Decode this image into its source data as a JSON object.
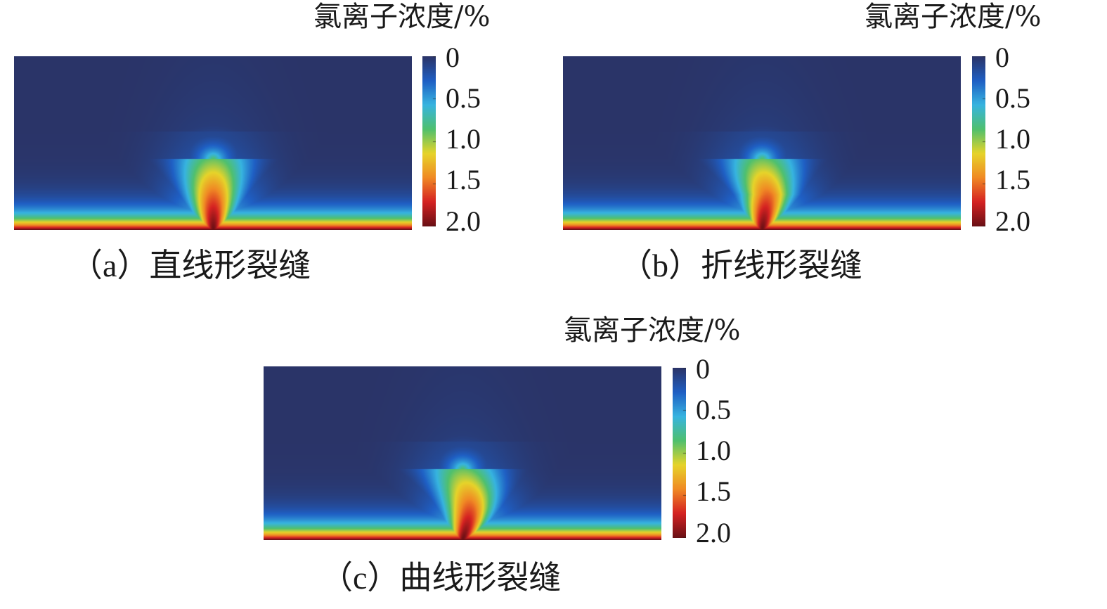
{
  "chart_data": [
    {
      "type": "heatmap",
      "caption_label": "（a）",
      "caption_text": "直线形裂缝",
      "colorbar_title": "氯离子浓度/%",
      "colorbar_ticks": [
        "0",
        "0.5",
        "1.0",
        "1.5",
        "2.0"
      ],
      "colorbar_values": [
        0,
        0.5,
        1.0,
        1.5,
        2.0
      ],
      "value_range": [
        0,
        2.0
      ],
      "colormap": [
        "#2a3468",
        "#1f5fc4",
        "#37b4e0",
        "#4fc06e",
        "#e6d42a",
        "#f08a24",
        "#d52222",
        "#6a1015"
      ],
      "crack_shape": "straight"
    },
    {
      "type": "heatmap",
      "caption_label": "（b）",
      "caption_text": "折线形裂缝",
      "colorbar_title": "氯离子浓度/%",
      "colorbar_ticks": [
        "0",
        "0.5",
        "1.0",
        "1.5",
        "2.0"
      ],
      "colorbar_values": [
        0,
        0.5,
        1.0,
        1.5,
        2.0
      ],
      "value_range": [
        0,
        2.0
      ],
      "colormap": [
        "#2a3468",
        "#1f5fc4",
        "#37b4e0",
        "#4fc06e",
        "#e6d42a",
        "#f08a24",
        "#d52222",
        "#6a1015"
      ],
      "crack_shape": "polyline"
    },
    {
      "type": "heatmap",
      "caption_label": "（c）",
      "caption_text": "曲线形裂缝",
      "colorbar_title": "氯离子浓度/%",
      "colorbar_ticks": [
        "0",
        "0.5",
        "1.0",
        "1.5",
        "2.0"
      ],
      "colorbar_values": [
        0,
        0.5,
        1.0,
        1.5,
        2.0
      ],
      "value_range": [
        0,
        2.0
      ],
      "colormap": [
        "#2a3468",
        "#1f5fc4",
        "#37b4e0",
        "#4fc06e",
        "#e6d42a",
        "#f08a24",
        "#d52222",
        "#6a1015"
      ],
      "crack_shape": "curved"
    }
  ]
}
